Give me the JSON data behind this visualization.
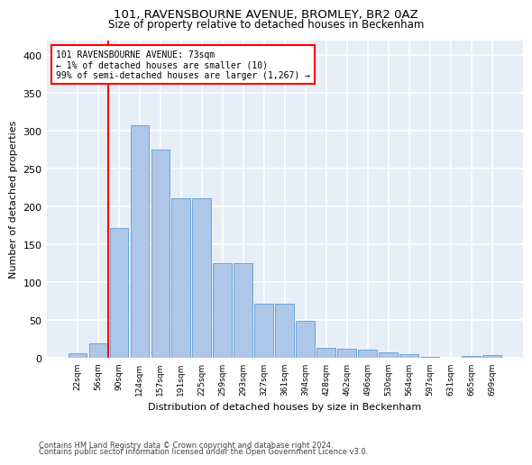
{
  "title": "101, RAVENSBOURNE AVENUE, BROMLEY, BR2 0AZ",
  "subtitle": "Size of property relative to detached houses in Beckenham",
  "xlabel": "Distribution of detached houses by size in Beckenham",
  "ylabel": "Number of detached properties",
  "bar_color": "#aec6e8",
  "bar_edge_color": "#5a9fd4",
  "background_color": "#e8eef8",
  "annotation_text": "101 RAVENSBOURNE AVENUE: 73sqm\n← 1% of detached houses are smaller (10)\n99% of semi-detached houses are larger (1,267) →",
  "annotation_box_color": "white",
  "annotation_box_edge": "red",
  "vline_color": "red",
  "categories": [
    "22sqm",
    "56sqm",
    "90sqm",
    "124sqm",
    "157sqm",
    "191sqm",
    "225sqm",
    "259sqm",
    "293sqm",
    "327sqm",
    "361sqm",
    "394sqm",
    "428sqm",
    "462sqm",
    "496sqm",
    "530sqm",
    "564sqm",
    "597sqm",
    "631sqm",
    "665sqm",
    "699sqm"
  ],
  "values": [
    6,
    20,
    172,
    308,
    276,
    211,
    211,
    126,
    126,
    72,
    72,
    49,
    14,
    13,
    11,
    8,
    5,
    2,
    1,
    3,
    4
  ],
  "ylim": [
    0,
    420
  ],
  "yticks": [
    0,
    50,
    100,
    150,
    200,
    250,
    300,
    350,
    400
  ],
  "footer1": "Contains HM Land Registry data © Crown copyright and database right 2024.",
  "footer2": "Contains public sector information licensed under the Open Government Licence v3.0."
}
